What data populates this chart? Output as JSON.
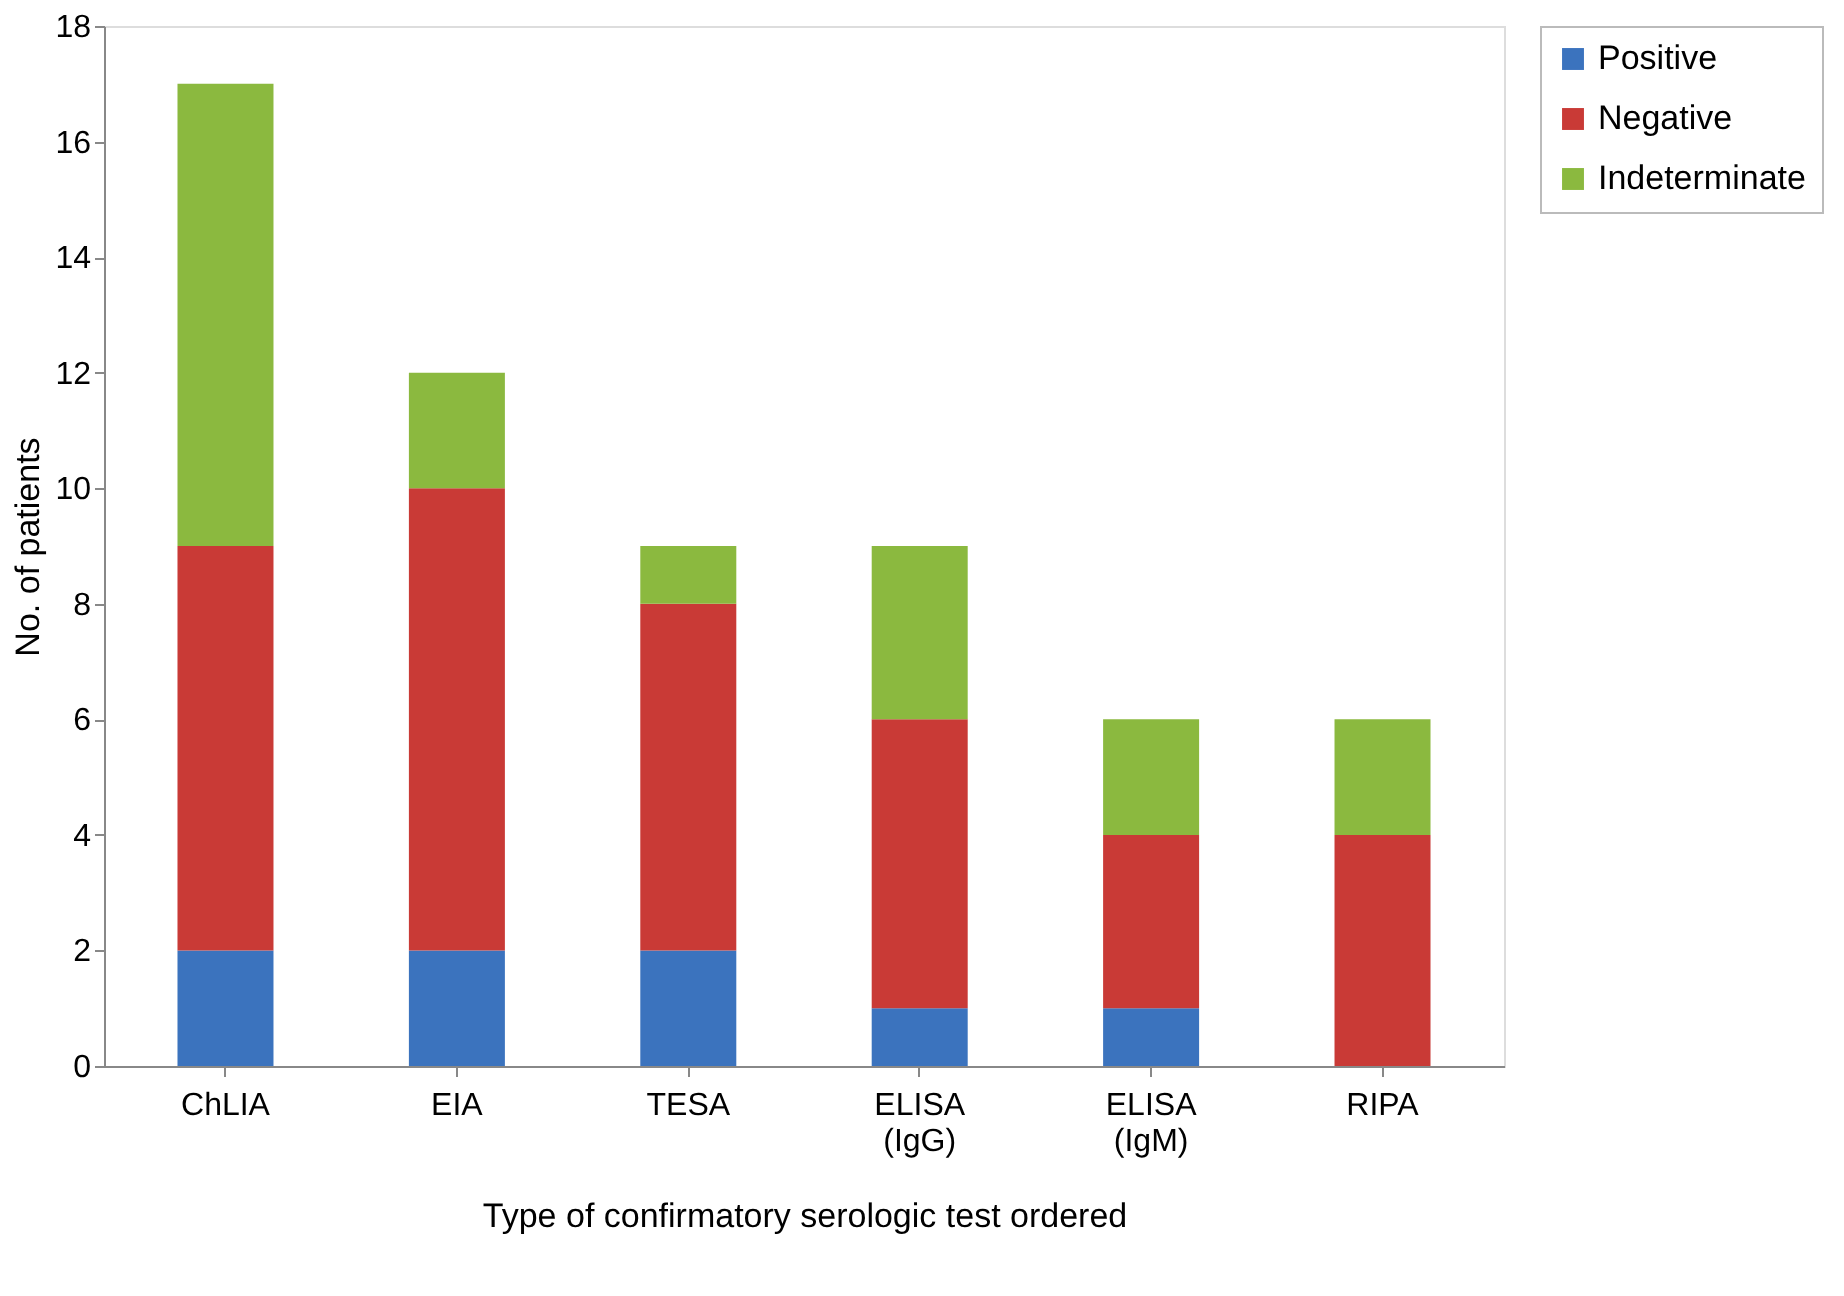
{
  "chart_data": {
    "type": "bar",
    "stacked": true,
    "xlabel": "Type of confirmatory serologic test ordered",
    "ylabel": "No. of patients",
    "categories": [
      "ChLIA",
      "EIA",
      "TESA",
      "ELISA (IgG)",
      "ELISA (IgM)",
      "RIPA"
    ],
    "series": [
      {
        "name": "Positive",
        "color": "#3b73be",
        "values": [
          2,
          2,
          2,
          1,
          1,
          0
        ]
      },
      {
        "name": "Negative",
        "color": "#c93a36",
        "values": [
          7,
          8,
          6,
          5,
          3,
          4
        ]
      },
      {
        "name": "Indeterminate",
        "color": "#8bb93f",
        "values": [
          8,
          2,
          1,
          3,
          2,
          2
        ]
      }
    ],
    "ylim": [
      0,
      18
    ],
    "yticks": [
      0,
      2,
      4,
      6,
      8,
      10,
      12,
      14,
      16,
      18
    ],
    "grid": false,
    "legend": "right"
  }
}
